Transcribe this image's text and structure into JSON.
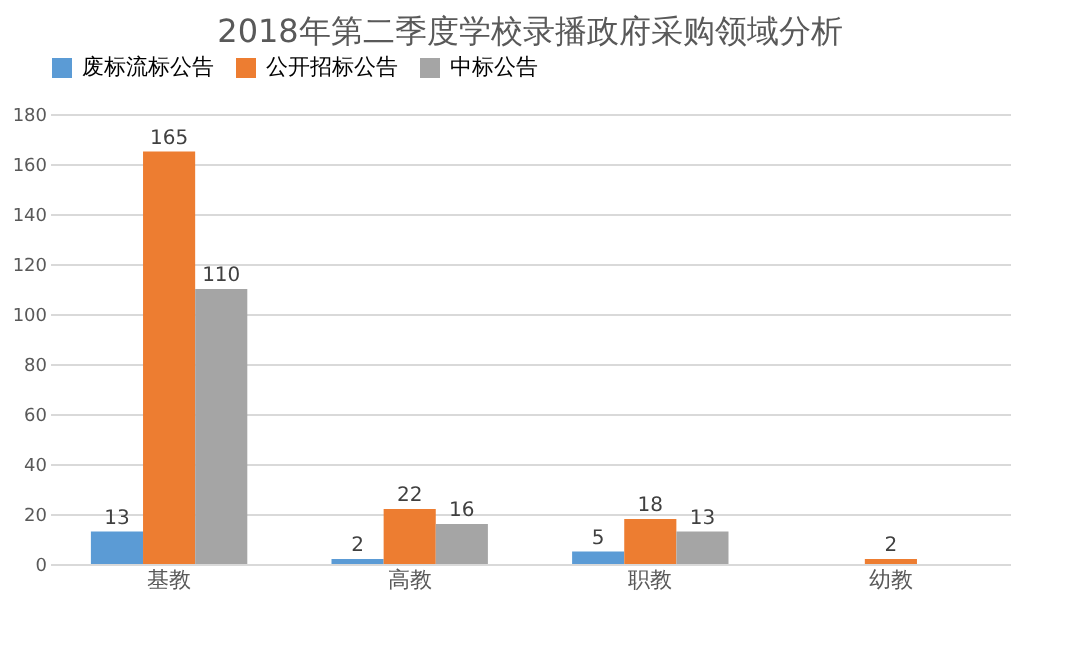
{
  "chart_data": {
    "type": "bar",
    "title": "2018年第二季度学校录播政府采购领域分析",
    "categories": [
      "基教",
      "高教",
      "职教",
      "幼教"
    ],
    "series": [
      {
        "name": "废标流标公告",
        "color": "#5b9bd5",
        "values": [
          13,
          2,
          5,
          null
        ]
      },
      {
        "name": "公开招标公告",
        "color": "#ed7d31",
        "values": [
          165,
          22,
          18,
          2
        ]
      },
      {
        "name": "中标公告",
        "color": "#a5a5a5",
        "values": [
          110,
          16,
          13,
          null
        ]
      }
    ],
    "ylim": [
      0,
      180
    ],
    "yticks": [
      0,
      20,
      40,
      60,
      80,
      100,
      120,
      140,
      160,
      180
    ],
    "grid": "y",
    "legend": "top",
    "data_labels": true
  }
}
